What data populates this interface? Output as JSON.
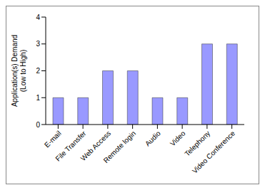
{
  "chart_data": {
    "type": "bar",
    "y_label": "Application(s) Demand (Low to High)",
    "categories": [
      "E-mail",
      "File Transfer",
      "Web Access",
      "Remote login",
      "Audio",
      "Video",
      "Telephony",
      "Video Conference"
    ],
    "values": [
      1,
      1,
      2,
      2,
      1,
      1,
      3,
      3
    ],
    "color": "#9999ff",
    "ylim": [
      0,
      4
    ],
    "yticks": [
      0,
      1,
      2,
      3,
      4
    ],
    "grid": false
  }
}
